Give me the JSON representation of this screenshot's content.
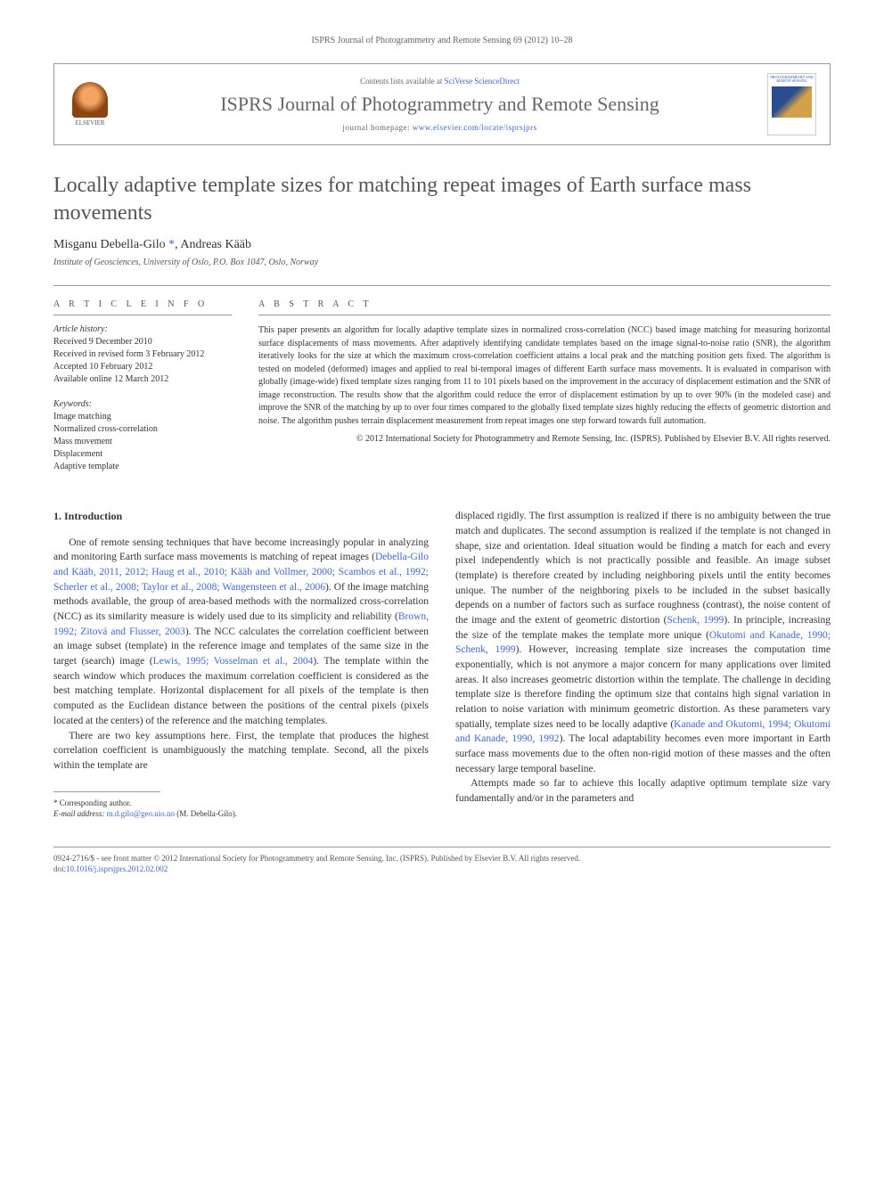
{
  "running_head": "ISPRS Journal of Photogrammetry and Remote Sensing 69 (2012) 10–28",
  "header": {
    "contents_prefix": "Contents lists available at ",
    "contents_link": "SciVerse ScienceDirect",
    "journal_name": "ISPRS Journal of Photogrammetry and Remote Sensing",
    "homepage_prefix": "journal homepage: ",
    "homepage_url": "www.elsevier.com/locate/isprsjprs",
    "elsevier_label": "ELSEVIER",
    "cover_label": "PHOTOGRAMMETRY AND REMOTE SENSING"
  },
  "title": "Locally adaptive template sizes for matching repeat images of Earth surface mass movements",
  "authors": {
    "a1_name": "Misganu Debella-Gilo",
    "a1_marker": "*",
    "a2_name": "Andreas Kääb"
  },
  "affiliation": "Institute of Geosciences, University of Oslo, P.O. Box 1047, Oslo, Norway",
  "article_info": {
    "heading": "A R T I C L E   I N F O",
    "history_label": "Article history:",
    "h1": "Received 9 December 2010",
    "h2": "Received in revised form 3 February 2012",
    "h3": "Accepted 10 February 2012",
    "h4": "Available online 12 March 2012",
    "keywords_label": "Keywords:",
    "k1": "Image matching",
    "k2": "Normalized cross-correlation",
    "k3": "Mass movement",
    "k4": "Displacement",
    "k5": "Adaptive template"
  },
  "abstract": {
    "heading": "A B S T R A C T",
    "text": "This paper presents an algorithm for locally adaptive template sizes in normalized cross-correlation (NCC) based image matching for measuring horizontal surface displacements of mass movements. After adaptively identifying candidate templates based on the image signal-to-noise ratio (SNR), the algorithm iteratively looks for the size at which the maximum cross-correlation coefficient attains a local peak and the matching position gets fixed. The algorithm is tested on modeled (deformed) images and applied to real bi-temporal images of different Earth surface mass movements. It is evaluated in comparison with globally (image-wide) fixed template sizes ranging from 11 to 101 pixels based on the improvement in the accuracy of displacement estimation and the SNR of image reconstruction. The results show that the algorithm could reduce the error of displacement estimation by up to over 90% (in the modeled case) and improve the SNR of the matching by up to over four times compared to the globally fixed template sizes highly reducing the effects of geometric distortion and noise. The algorithm pushes terrain displacement measurement from repeat images one step forward towards full automation.",
    "copyright": "© 2012 International Society for Photogrammetry and Remote Sensing, Inc. (ISPRS). Published by Elsevier B.V. All rights reserved."
  },
  "body": {
    "section_head": "1. Introduction",
    "col1_p1a": "One of remote sensing techniques that have become increasingly popular in analyzing and monitoring Earth surface mass movements is matching of repeat images (",
    "col1_r1": "Debella-Gilo and Kääb, 2011, 2012; Haug et al., 2010; Kääb and Vollmer, 2000; Scambos et al., 1992; Scherler et al., 2008; Taylor et al., 2008; Wangensteen et al., 2006",
    "col1_p1b": "). Of the image matching methods available, the group of area-based methods with the normalized cross-correlation (NCC) as its similarity measure is widely used due to its simplicity and reliability (",
    "col1_r2": "Brown, 1992; Zitová and Flusser, 2003",
    "col1_p1c": "). The NCC calculates the correlation coefficient between an image subset (template) in the reference image and templates of the same size in the target (search) image (",
    "col1_r3": "Lewis, 1995; Vosselman et al., 2004",
    "col1_p1d": "). The template within the search window which produces the maximum correlation coefficient is considered as the best matching template. Horizontal displacement for all pixels of the template is then computed as the Euclidean distance between the positions of the central pixels (pixels located at the centers) of the reference and the matching templates.",
    "col1_p2": "There are two key assumptions here. First, the template that produces the highest correlation coefficient is unambiguously the matching template. Second, all the pixels within the template are",
    "col2_p1a": "displaced rigidly. The first assumption is realized if there is no ambiguity between the true match and duplicates. The second assumption is realized if the template is not changed in shape, size and orientation. Ideal situation would be finding a match for each and every pixel independently which is not practically possible and feasible. An image subset (template) is therefore created by including neighboring pixels until the entity becomes unique. The number of the neighboring pixels to be included in the subset basically depends on a number of factors such as surface roughness (contrast), the noise content of the image and the extent of geometric distortion (",
    "col2_r1": "Schenk, 1999",
    "col2_p1b": "). In principle, increasing the size of the template makes the template more unique (",
    "col2_r2": "Okutomi and Kanade, 1990; Schenk, 1999",
    "col2_p1c": "). However, increasing template size increases the computation time exponentially, which is not anymore a major concern for many applications over limited areas. It also increases geometric distortion within the template. The challenge in deciding template size is therefore finding the optimum size that contains high signal variation in relation to noise variation with minimum geometric distortion. As these parameters vary spatially, template sizes need to be locally adaptive (",
    "col2_r3": "Kanade and Okutomi, 1994; Okutomi and Kanade, 1990, 1992",
    "col2_p1d": "). The local adaptability becomes even more important in Earth surface mass movements due to the often non-rigid motion of these masses and the often necessary large temporal baseline.",
    "col2_p2": "Attempts made so far to achieve this locally adaptive optimum template size vary fundamentally and/or in the parameters and"
  },
  "footnote": {
    "corr_label": "* Corresponding author.",
    "email_label": "E-mail address: ",
    "email": "m.d.gilo@geo.uio.no",
    "email_suffix": " (M. Debella-Gilo)."
  },
  "footer": {
    "line1": "0924-2716/$ - see front matter © 2012 International Society for Photogrammetry and Remote Sensing, Inc. (ISPRS). Published by Elsevier B.V. All rights reserved.",
    "doi_label": "doi:",
    "doi": "10.1016/j.isprsjprs.2012.02.002"
  },
  "colors": {
    "link": "#4169c8",
    "text": "#333333",
    "muted": "#666666",
    "rule": "#999999"
  }
}
